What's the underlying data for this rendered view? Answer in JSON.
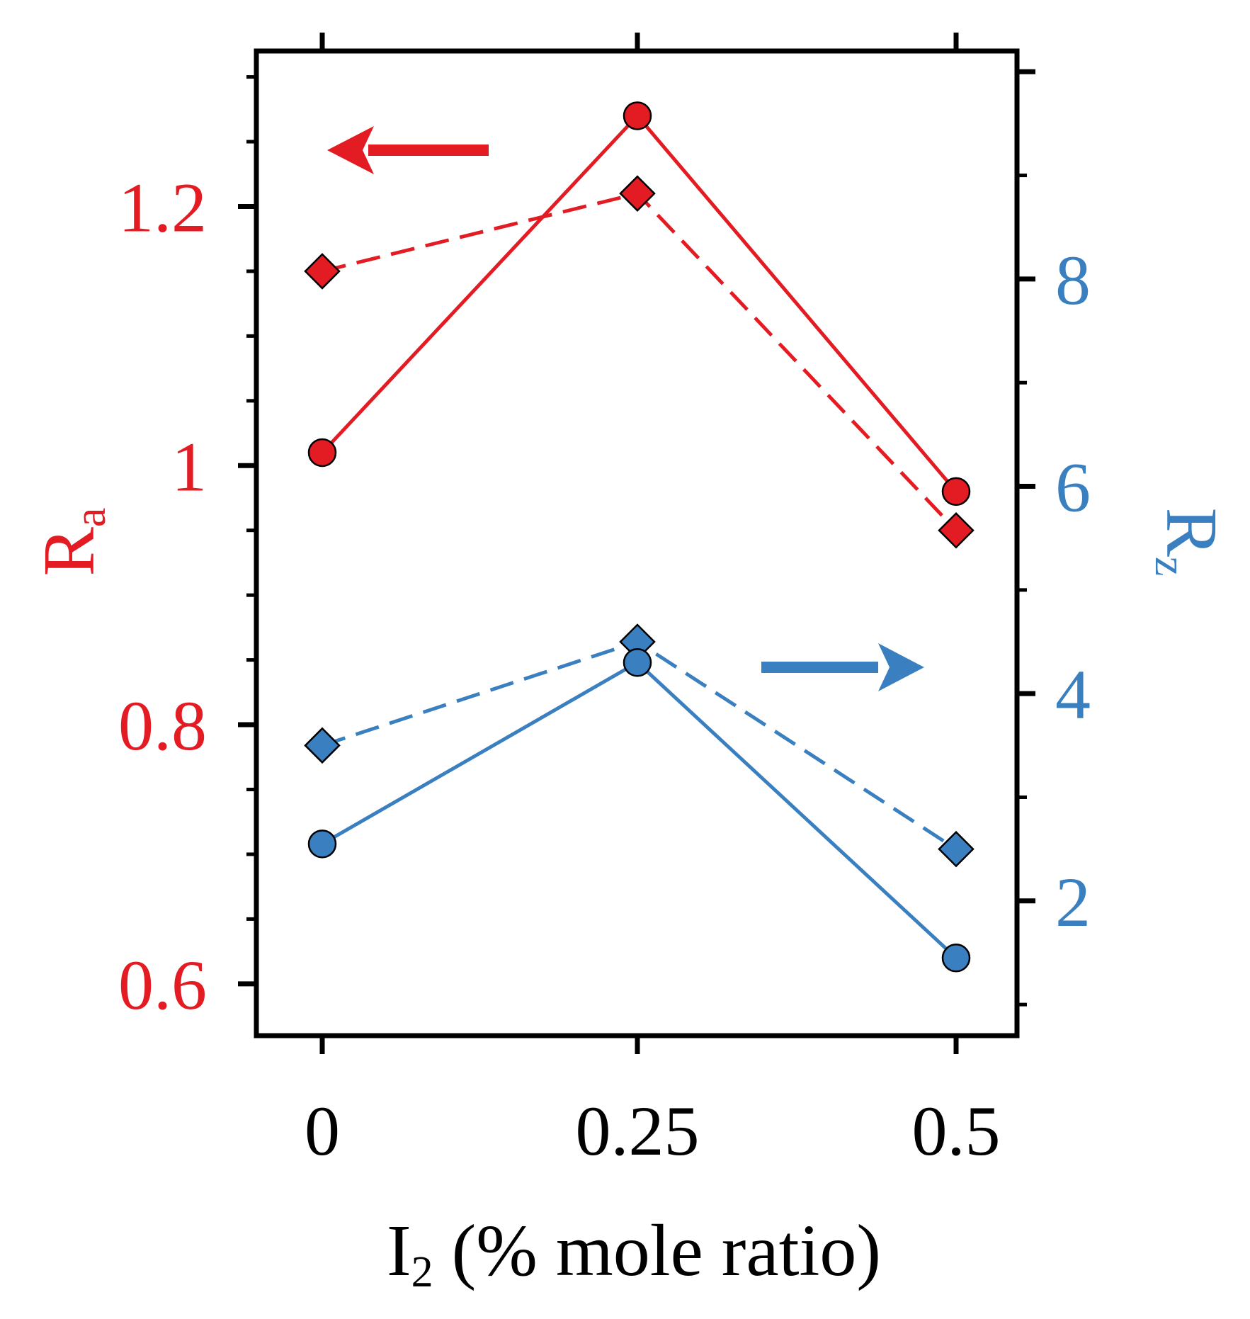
{
  "chart_data": {
    "type": "line",
    "title": "",
    "x": [
      0,
      0.25,
      0.5
    ],
    "xtick_labels": [
      "0",
      "0.25",
      "0.5"
    ],
    "xlabel": {
      "main": "I",
      "sub": "2",
      "rest": " (% mole ratio)"
    },
    "y_left": {
      "label": {
        "main": "R",
        "sub": "a"
      },
      "range": [
        0.56,
        1.32
      ],
      "ticks": [
        0.6,
        0.8,
        1,
        1.2
      ],
      "tick_labels": [
        "0.6",
        "0.8",
        "1",
        "1.2"
      ],
      "color": "#e31b23"
    },
    "y_right": {
      "label": {
        "main": "R",
        "sub": "z"
      },
      "range": [
        0.7,
        10.2
      ],
      "ticks": [
        2,
        4,
        6,
        8
      ],
      "tick_labels": [
        "2",
        "4",
        "6",
        "8"
      ],
      "color": "#3a7fbf"
    },
    "series": [
      {
        "name": "Ra-circle",
        "axis": "left",
        "marker": "circle",
        "dash": "solid",
        "color": "#e31b23",
        "values": [
          1.01,
          1.27,
          0.98
        ]
      },
      {
        "name": "Ra-diamond",
        "axis": "left",
        "marker": "diamond",
        "dash": "dashed",
        "color": "#e31b23",
        "values": [
          1.15,
          1.21,
          0.95
        ]
      },
      {
        "name": "Rz-diamond",
        "axis": "right",
        "marker": "diamond",
        "dash": "dashed",
        "color": "#3a7fbf",
        "values": [
          3.5,
          4.5,
          2.5
        ]
      },
      {
        "name": "Rz-circle",
        "axis": "right",
        "marker": "circle",
        "dash": "solid",
        "color": "#3a7fbf",
        "values": [
          2.55,
          4.3,
          1.45
        ]
      }
    ],
    "annotations": [
      {
        "type": "arrow",
        "direction": "left",
        "color": "#e31b23",
        "points_to": "left-axis"
      },
      {
        "type": "arrow",
        "direction": "right",
        "color": "#3a7fbf",
        "points_to": "right-axis"
      }
    ],
    "grid": false,
    "legend": "none"
  }
}
